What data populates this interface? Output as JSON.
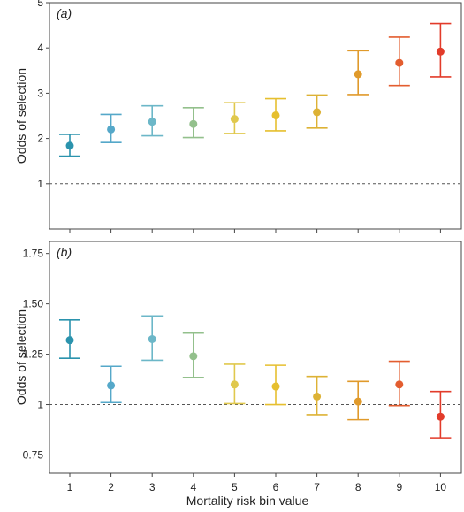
{
  "chart_data": [
    {
      "type": "scatter",
      "panel_label": "(a)",
      "ylabel": "Odds of selection",
      "xlabel": "",
      "ylim": [
        0,
        5
      ],
      "yticks": [
        1,
        2,
        3,
        4,
        5
      ],
      "ytick_labels": [
        "1",
        "2",
        "3",
        "4",
        "5"
      ],
      "reference_line": 1,
      "categories": [
        "1",
        "2",
        "3",
        "4",
        "5",
        "6",
        "7",
        "8",
        "9",
        "10"
      ],
      "values": [
        1.84,
        2.2,
        2.37,
        2.32,
        2.43,
        2.51,
        2.58,
        3.42,
        3.67,
        3.92
      ],
      "lower": [
        1.61,
        1.91,
        2.06,
        2.02,
        2.11,
        2.17,
        2.23,
        2.97,
        3.17,
        3.36
      ],
      "upper": [
        2.09,
        2.53,
        2.72,
        2.68,
        2.79,
        2.88,
        2.96,
        3.94,
        4.24,
        4.54
      ]
    },
    {
      "type": "scatter",
      "panel_label": "(b)",
      "ylabel": "Odds of selection",
      "xlabel": "Mortality risk bin value",
      "ylim": [
        0.66,
        1.81
      ],
      "yticks": [
        0.75,
        1,
        1.25,
        1.5,
        1.75
      ],
      "ytick_labels": [
        "0.75",
        "1",
        "1.25",
        "1.50",
        "1.75"
      ],
      "reference_line": 1,
      "categories": [
        "1",
        "2",
        "3",
        "4",
        "5",
        "6",
        "7",
        "8",
        "9",
        "10"
      ],
      "values": [
        1.32,
        1.095,
        1.325,
        1.24,
        1.1,
        1.09,
        1.04,
        1.015,
        1.1,
        0.94
      ],
      "lower": [
        1.23,
        1.01,
        1.22,
        1.135,
        1.005,
        1.0,
        0.95,
        0.925,
        0.995,
        0.835
      ],
      "upper": [
        1.42,
        1.19,
        1.44,
        1.355,
        1.2,
        1.195,
        1.14,
        1.115,
        1.215,
        1.065
      ]
    }
  ],
  "colors": [
    "#2b93ad",
    "#55a8c9",
    "#6cb7c8",
    "#93c08c",
    "#e0c84d",
    "#e6bf2f",
    "#ddb235",
    "#e09a2b",
    "#e35d2f",
    "#e23b2a"
  ]
}
